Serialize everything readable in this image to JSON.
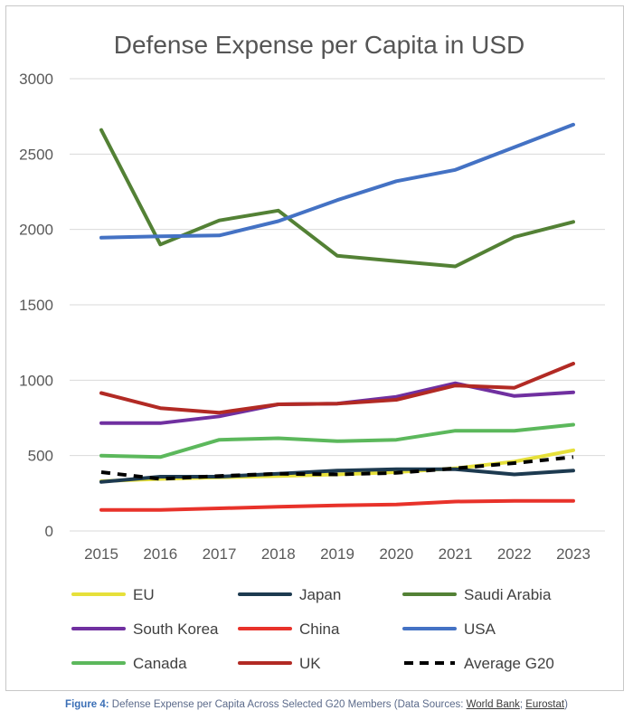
{
  "chart_data": {
    "type": "line",
    "title": "Defense Expense per Capita in USD",
    "xlabel": "",
    "ylabel": "",
    "x": [
      "2015",
      "2016",
      "2017",
      "2018",
      "2019",
      "2020",
      "2021",
      "2022",
      "2023"
    ],
    "ylim": [
      0,
      3000
    ],
    "yticks": [
      0,
      500,
      1000,
      1500,
      2000,
      2500,
      3000
    ],
    "grid": true,
    "legend_position": "bottom",
    "series": [
      {
        "name": "EU",
        "color": "#e6e03a",
        "dash": false,
        "values": [
          330,
          345,
          355,
          365,
          375,
          390,
          415,
          460,
          535
        ]
      },
      {
        "name": "Japan",
        "color": "#1d3a50",
        "dash": false,
        "values": [
          325,
          360,
          360,
          380,
          400,
          410,
          410,
          375,
          400
        ]
      },
      {
        "name": "Saudi Arabia",
        "color": "#538135",
        "dash": false,
        "values": [
          2660,
          1900,
          2060,
          2125,
          1825,
          1790,
          1755,
          1950,
          2050
        ]
      },
      {
        "name": "South Korea",
        "color": "#7030a0",
        "dash": false,
        "values": [
          715,
          715,
          760,
          840,
          845,
          890,
          980,
          895,
          920
        ]
      },
      {
        "name": "China",
        "color": "#e8322a",
        "dash": false,
        "values": [
          140,
          140,
          150,
          160,
          170,
          175,
          195,
          200,
          200
        ]
      },
      {
        "name": "USA",
        "color": "#4472c4",
        "dash": false,
        "values": [
          1945,
          1955,
          1960,
          2055,
          2195,
          2320,
          2395,
          2545,
          2695
        ]
      },
      {
        "name": "Canada",
        "color": "#5cb85c",
        "dash": false,
        "values": [
          500,
          490,
          605,
          615,
          595,
          605,
          665,
          665,
          705
        ]
      },
      {
        "name": "UK",
        "color": "#b22a24",
        "dash": false,
        "values": [
          915,
          815,
          785,
          840,
          845,
          870,
          965,
          950,
          1110
        ]
      },
      {
        "name": "Average G20",
        "color": "#000000",
        "dash": true,
        "values": [
          390,
          345,
          365,
          380,
          375,
          385,
          415,
          450,
          490
        ]
      }
    ]
  },
  "caption": {
    "figure_label": "Figure 4:",
    "text": " Defense Expense per Capita Across Selected G20 Members (Data Sources: ",
    "source1": "World Bank",
    "sep": "; ",
    "source2": "Eurostat",
    "end": ")"
  }
}
